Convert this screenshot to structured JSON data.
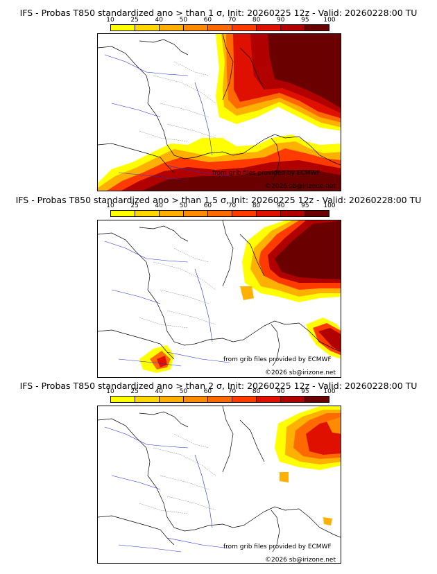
{
  "colorbar": {
    "ticks": [
      "10",
      "25",
      "40",
      "50",
      "60",
      "70",
      "80",
      "90",
      "95",
      "100"
    ],
    "colors": [
      "#ffff00",
      "#ffd700",
      "#ffb000",
      "#ff8c00",
      "#ff6a00",
      "#ff3b00",
      "#e01000",
      "#b00000",
      "#6a0000"
    ]
  },
  "panels": [
    {
      "title": "IFS - Probas T850  standardized ano > than 1 σ, Init: 20260225 12z - Valid: 20260228:00 TU",
      "threshold_sigma": 1
    },
    {
      "title": "IFS - Probas T850  standardized ano > than 1.5 σ, Init: 20260225 12z - Valid: 20260228:00 TU",
      "threshold_sigma": 1.5
    },
    {
      "title": "IFS - Probas T850  standardized ano > than 2 σ, Init: 20260225 12z - Valid: 20260228:00 TU",
      "threshold_sigma": 2
    }
  ],
  "credits": {
    "source": "from grib files provided by ECMWF",
    "copyright": "©2026 sb@irizone.net"
  }
}
